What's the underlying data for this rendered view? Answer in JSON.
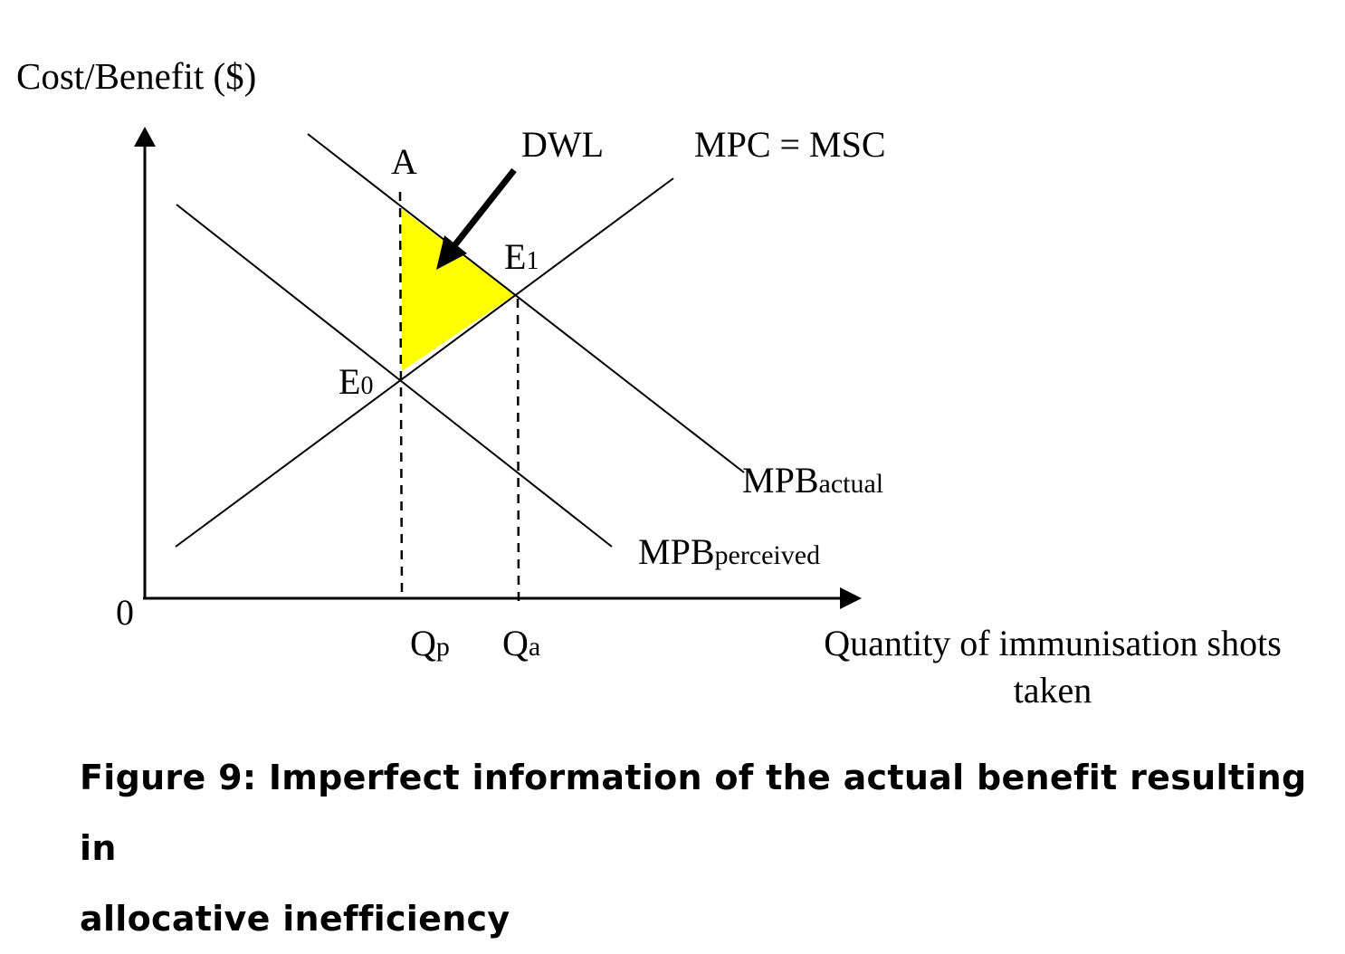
{
  "diagram": {
    "y_axis_label": "Cost/Benefit ($)",
    "origin_label": "0",
    "x_axis_label_line1": "Quantity of immunisation shots",
    "x_axis_label_line2": "taken",
    "point_a_label": "A",
    "dwl_label": "DWL",
    "supply_curve_label": "MPC = MSC",
    "e1_base": "E",
    "e1_sub": "1",
    "e0_base": "E",
    "e0_sub": "0",
    "mpb_actual_base": "MPB",
    "mpb_actual_sub": "actual",
    "mpb_perceived_base": "MPB",
    "mpb_perceived_sub": "perceived",
    "qp_base": "Q",
    "qp_sub": "p",
    "qa_base": "Q",
    "qa_sub": "a",
    "dwl_fill_color": "#ffff00",
    "line_color": "#000000"
  },
  "caption": {
    "line1": "Figure 9: Imperfect information of the actual benefit resulting in",
    "line2": "allocative inefficiency"
  }
}
